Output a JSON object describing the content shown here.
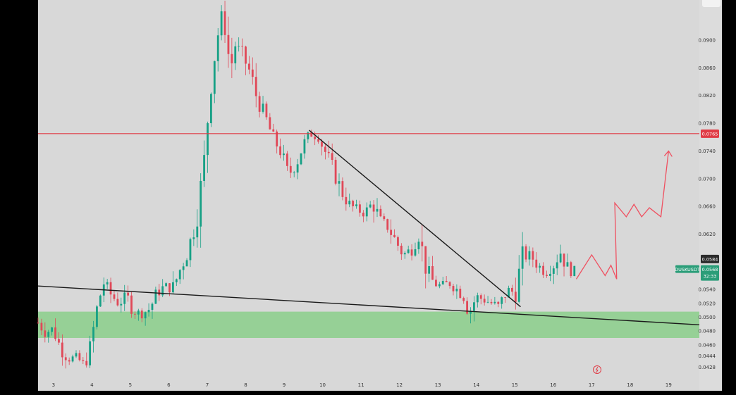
{
  "chart_data": {
    "type": "candlestick",
    "symbol_tag": "DUSKUSDT",
    "last_price": "0.0568",
    "countdown": "32:33",
    "crosshair_price": "0.0584",
    "resistance_price_label": "0.0765",
    "resistance_level": 0.0765,
    "support_zone": [
      0.047,
      0.0508
    ],
    "ylim": [
      0.041,
      0.0958
    ],
    "xlim": [
      2.6,
      19.8
    ],
    "price_ticks": [
      "0.0900",
      "0.0860",
      "0.0820",
      "0.0780",
      "0.0740",
      "0.0700",
      "0.0660",
      "0.0620",
      "0.0540",
      "0.0520",
      "0.0500",
      "0.0480",
      "0.0460",
      "0.0444",
      "0.0428"
    ],
    "date_ticks": [
      {
        "label": "3",
        "x": 3
      },
      {
        "label": "4",
        "x": 4
      },
      {
        "label": "5",
        "x": 5
      },
      {
        "label": "6",
        "x": 6
      },
      {
        "label": "7",
        "x": 7
      },
      {
        "label": "8",
        "x": 8
      },
      {
        "label": "9",
        "x": 9
      },
      {
        "label": "10",
        "x": 10
      },
      {
        "label": "11",
        "x": 11
      },
      {
        "label": "12",
        "x": 12
      },
      {
        "label": "13",
        "x": 13
      },
      {
        "label": "14",
        "x": 14
      },
      {
        "label": "15",
        "x": 15
      },
      {
        "label": "16",
        "x": 16
      },
      {
        "label": "17",
        "x": 17
      },
      {
        "label": "18",
        "x": 18
      },
      {
        "label": "19",
        "x": 19
      }
    ],
    "price_path": [
      [
        2.6,
        0.0492
      ],
      [
        2.8,
        0.0478
      ],
      [
        3.0,
        0.0484
      ],
      [
        3.2,
        0.0452
      ],
      [
        3.4,
        0.044
      ],
      [
        3.6,
        0.0442
      ],
      [
        3.8,
        0.043
      ],
      [
        3.9,
        0.0444
      ],
      [
        4.0,
        0.0468
      ],
      [
        4.1,
        0.0505
      ],
      [
        4.2,
        0.0528
      ],
      [
        4.3,
        0.055
      ],
      [
        4.5,
        0.0532
      ],
      [
        4.7,
        0.052
      ],
      [
        4.9,
        0.053
      ],
      [
        5.1,
        0.0508
      ],
      [
        5.3,
        0.0505
      ],
      [
        5.5,
        0.0512
      ],
      [
        5.7,
        0.0535
      ],
      [
        5.9,
        0.0545
      ],
      [
        6.1,
        0.054
      ],
      [
        6.3,
        0.057
      ],
      [
        6.5,
        0.0595
      ],
      [
        6.7,
        0.064
      ],
      [
        6.9,
        0.071
      ],
      [
        7.0,
        0.078
      ],
      [
        7.1,
        0.084
      ],
      [
        7.2,
        0.088
      ],
      [
        7.35,
        0.0935
      ],
      [
        7.5,
        0.091
      ],
      [
        7.6,
        0.085
      ],
      [
        7.7,
        0.0895
      ],
      [
        7.9,
        0.088
      ],
      [
        8.1,
        0.0855
      ],
      [
        8.3,
        0.0815
      ],
      [
        8.5,
        0.079
      ],
      [
        8.7,
        0.076
      ],
      [
        8.9,
        0.074
      ],
      [
        9.1,
        0.0705
      ],
      [
        9.3,
        0.072
      ],
      [
        9.5,
        0.075
      ],
      [
        9.7,
        0.0765
      ],
      [
        9.9,
        0.076
      ],
      [
        10.1,
        0.0735
      ],
      [
        10.3,
        0.071
      ],
      [
        10.5,
        0.068
      ],
      [
        10.7,
        0.0662
      ],
      [
        10.9,
        0.0655
      ],
      [
        11.1,
        0.065
      ],
      [
        11.3,
        0.0665
      ],
      [
        11.5,
        0.064
      ],
      [
        11.7,
        0.063
      ],
      [
        11.9,
        0.061
      ],
      [
        12.1,
        0.059
      ],
      [
        12.3,
        0.0598
      ],
      [
        12.5,
        0.0618
      ],
      [
        12.7,
        0.057
      ],
      [
        12.9,
        0.0548
      ],
      [
        13.1,
        0.0545
      ],
      [
        13.3,
        0.055
      ],
      [
        13.5,
        0.054
      ],
      [
        13.7,
        0.0528
      ],
      [
        13.8,
        0.0505
      ],
      [
        14.0,
        0.053
      ],
      [
        14.2,
        0.0525
      ],
      [
        14.4,
        0.052
      ],
      [
        14.6,
        0.0515
      ],
      [
        14.8,
        0.054
      ],
      [
        15.0,
        0.0535
      ],
      [
        15.2,
        0.0585
      ],
      [
        15.4,
        0.059
      ],
      [
        15.6,
        0.0575
      ],
      [
        15.8,
        0.0565
      ],
      [
        16.0,
        0.0575
      ],
      [
        16.2,
        0.0595
      ],
      [
        16.4,
        0.0565
      ],
      [
        16.6,
        0.0568
      ]
    ],
    "annotations": {
      "upper_trendline": [
        [
          9.65,
          0.077
        ],
        [
          15.15,
          0.0515
        ]
      ],
      "lower_trendline": [
        [
          2.6,
          0.0545
        ],
        [
          19.8,
          0.0489
        ]
      ],
      "projection_path": [
        [
          16.6,
          0.0555
        ],
        [
          17.0,
          0.059
        ],
        [
          17.35,
          0.056
        ],
        [
          17.5,
          0.0575
        ],
        [
          17.65,
          0.0555
        ],
        [
          17.6,
          0.0665
        ],
        [
          17.9,
          0.0645
        ],
        [
          18.1,
          0.0663
        ],
        [
          18.3,
          0.0645
        ],
        [
          18.5,
          0.0658
        ],
        [
          18.8,
          0.0645
        ],
        [
          19.0,
          0.074
        ]
      ]
    }
  },
  "colors": {
    "up": "#16a085",
    "down": "#e04858",
    "resistance": "#e03b45",
    "support_zone": "#8fcf8f",
    "trendline": "#1a1a1a",
    "projection": "#ef5060",
    "price_tag": "#2a9d78"
  }
}
